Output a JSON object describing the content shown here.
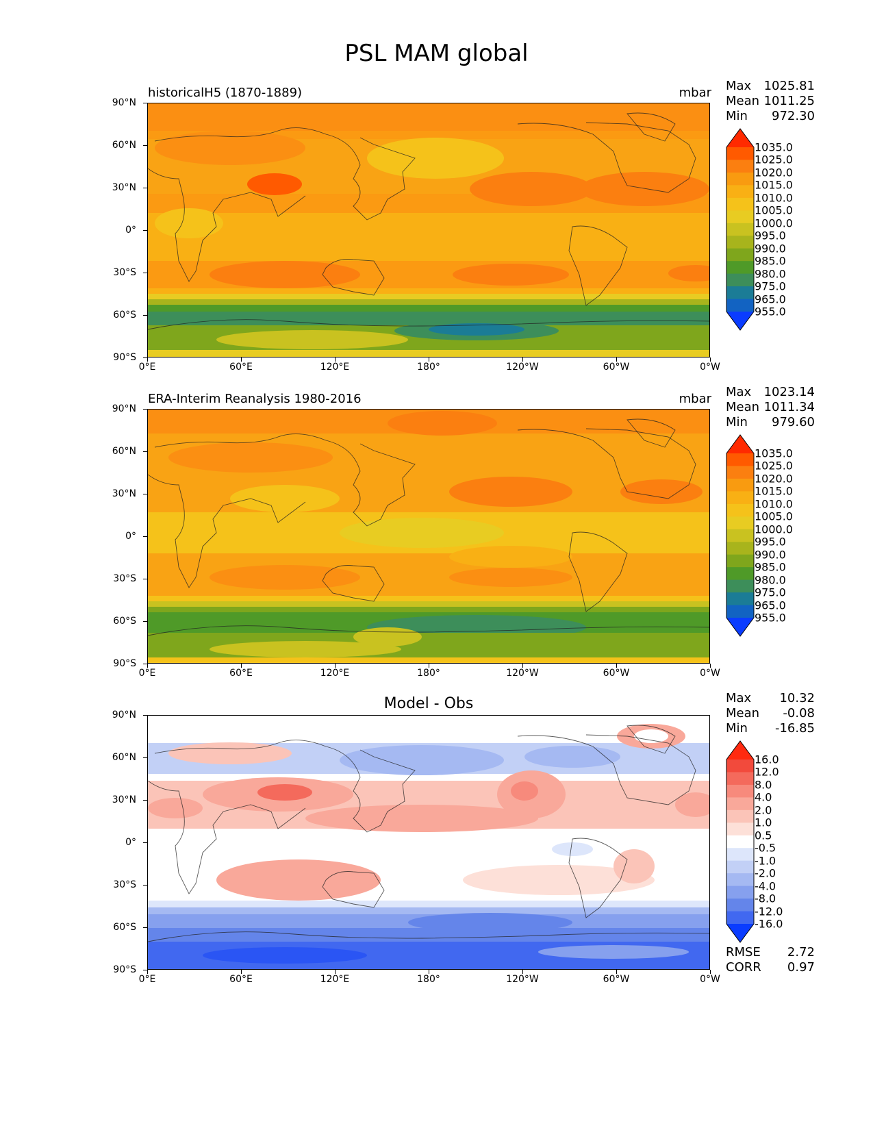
{
  "title": "PSL MAM global",
  "lat_ticks": [
    "90°N",
    "60°N",
    "30°N",
    "0°",
    "30°S",
    "60°S",
    "90°S"
  ],
  "lon_ticks": [
    "0°E",
    "60°E",
    "120°E",
    "180°",
    "120°W",
    "60°W",
    "0°W"
  ],
  "panels": [
    {
      "id": "model",
      "label": "historicalH5 (1870-1889)",
      "label_align": "left",
      "units": "mbar",
      "stats": {
        "max_label": "Max",
        "max": "1025.81",
        "mean_label": "Mean",
        "mean": "1011.25",
        "min_label": "Min",
        "min": "972.30"
      },
      "colorbar": {
        "levels": [
          "1035.0",
          "1025.0",
          "1020.0",
          "1015.0",
          "1010.0",
          "1005.0",
          "1000.0",
          "995.0",
          "990.0",
          "985.0",
          "980.0",
          "975.0",
          "965.0",
          "955.0"
        ],
        "colors": [
          "#ff2a00",
          "#ff5a00",
          "#fb7f10",
          "#f99b10",
          "#f9b014",
          "#f5c21a",
          "#e8cc22",
          "#c9c220",
          "#a8b41c",
          "#7fa61c",
          "#4f9a28",
          "#3d8e5a",
          "#1b7c96",
          "#1263c2",
          "#0a3cff"
        ]
      }
    },
    {
      "id": "obs",
      "label": "ERA-Interim Reanalysis 1980-2016",
      "label_align": "left",
      "units": "mbar",
      "stats": {
        "max_label": "Max",
        "max": "1023.14",
        "mean_label": "Mean",
        "mean": "1011.34",
        "min_label": "Min",
        "min": "979.60"
      },
      "colorbar": {
        "levels": [
          "1035.0",
          "1025.0",
          "1020.0",
          "1015.0",
          "1010.0",
          "1005.0",
          "1000.0",
          "995.0",
          "990.0",
          "985.0",
          "980.0",
          "975.0",
          "965.0",
          "955.0"
        ],
        "colors": [
          "#ff2a00",
          "#ff5a00",
          "#fb7f10",
          "#f99b10",
          "#f9b014",
          "#f5c21a",
          "#e8cc22",
          "#c9c220",
          "#a8b41c",
          "#7fa61c",
          "#4f9a28",
          "#3d8e5a",
          "#1b7c96",
          "#1263c2",
          "#0a3cff"
        ]
      }
    },
    {
      "id": "diff",
      "label": "Model - Obs",
      "label_align": "center",
      "units": "",
      "stats": {
        "max_label": "Max",
        "max": "10.32",
        "mean_label": "Mean",
        "mean": "-0.08",
        "min_label": "Min",
        "min": "-16.85"
      },
      "colorbar": {
        "levels": [
          "16.0",
          "12.0",
          "8.0",
          "4.0",
          "2.0",
          "1.0",
          "0.5",
          "-0.5",
          "-1.0",
          "-2.0",
          "-4.0",
          "-8.0",
          "-12.0",
          "-16.0"
        ],
        "colors": [
          "#ff2a10",
          "#f24a3c",
          "#f46a5c",
          "#f78a7c",
          "#f9a89a",
          "#fbc4b8",
          "#fde0d8",
          "#ffffff",
          "#dde6fb",
          "#c2d0f6",
          "#a5b9f2",
          "#86a0ee",
          "#6485ea",
          "#4168f0",
          "#0a3cff"
        ]
      },
      "metrics": [
        {
          "label": "RMSE",
          "value": "2.72"
        },
        {
          "label": "CORR",
          "value": "0.97"
        }
      ]
    }
  ]
}
